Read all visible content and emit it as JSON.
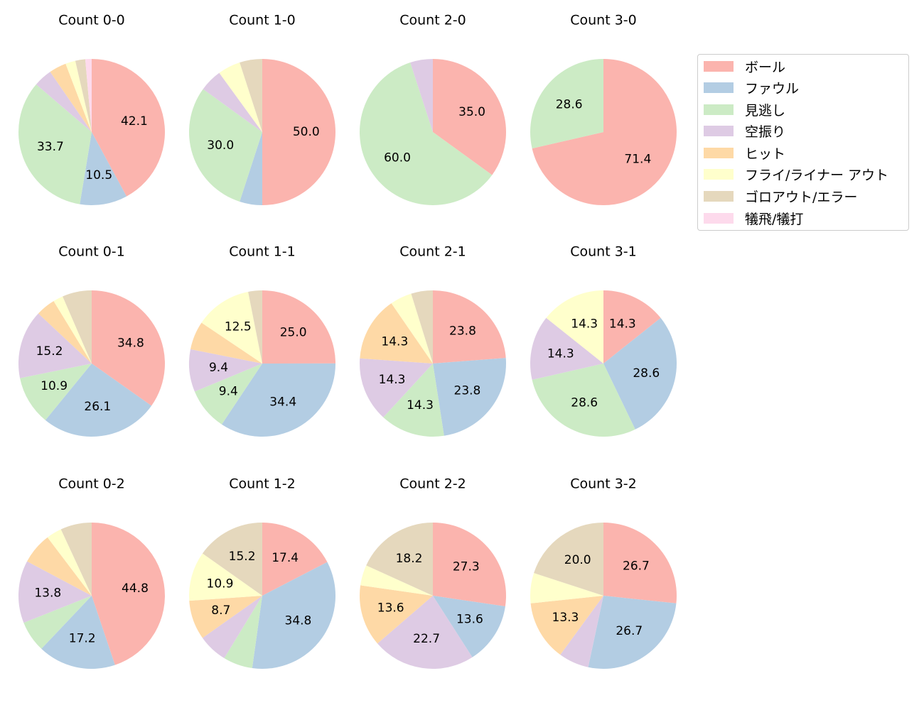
{
  "chart_data": {
    "type": "pie",
    "legend": {
      "placement": "top-right",
      "entries": [
        {
          "label": "ボール",
          "color": "#fbb4ae"
        },
        {
          "label": "ファウル",
          "color": "#b3cde3"
        },
        {
          "label": "見逃し",
          "color": "#ccebc5"
        },
        {
          "label": "空振り",
          "color": "#decbe4"
        },
        {
          "label": "ヒット",
          "color": "#fed9a6"
        },
        {
          "label": "フライ/ライナー アウト",
          "color": "#ffffcc"
        },
        {
          "label": "ゴロアウト/エラー",
          "color": "#e5d8bd"
        },
        {
          "label": "犠飛/犠打",
          "color": "#fddaec"
        }
      ]
    },
    "charts": [
      {
        "title": "Count 0-0",
        "values": [
          42.1,
          10.5,
          33.7,
          4.1,
          3.8,
          2.2,
          2.2,
          1.4
        ]
      },
      {
        "title": "Count 1-0",
        "values": [
          50.0,
          5.0,
          30.0,
          5.0,
          0,
          5.0,
          5.0,
          0
        ]
      },
      {
        "title": "Count 2-0",
        "values": [
          35.0,
          0,
          60.0,
          5.0,
          0,
          0,
          0,
          0
        ]
      },
      {
        "title": "Count 3-0",
        "values": [
          71.4,
          0,
          28.6,
          0,
          0,
          0,
          0,
          0
        ]
      },
      {
        "title": "Count 0-1",
        "values": [
          34.8,
          26.1,
          10.9,
          15.2,
          4.3,
          2.2,
          6.5,
          0
        ]
      },
      {
        "title": "Count 1-1",
        "values": [
          25.0,
          34.4,
          9.4,
          9.4,
          6.3,
          12.5,
          3.1,
          0
        ]
      },
      {
        "title": "Count 2-1",
        "values": [
          23.8,
          23.8,
          14.3,
          14.3,
          14.3,
          4.8,
          4.8,
          0
        ]
      },
      {
        "title": "Count 3-1",
        "values": [
          14.3,
          28.6,
          28.6,
          14.3,
          0,
          14.3,
          0,
          0
        ]
      },
      {
        "title": "Count 0-2",
        "values": [
          44.8,
          17.2,
          6.9,
          13.8,
          6.9,
          3.4,
          6.9,
          0
        ]
      },
      {
        "title": "Count 1-2",
        "values": [
          17.4,
          34.8,
          6.5,
          6.5,
          8.7,
          10.9,
          15.2,
          0
        ]
      },
      {
        "title": "Count 2-2",
        "values": [
          27.3,
          13.6,
          0,
          22.7,
          13.6,
          4.5,
          18.2,
          0
        ]
      },
      {
        "title": "Count 3-2",
        "values": [
          26.7,
          26.7,
          0,
          6.7,
          13.3,
          6.7,
          20.0,
          0
        ]
      }
    ],
    "label_threshold": 8.0
  }
}
